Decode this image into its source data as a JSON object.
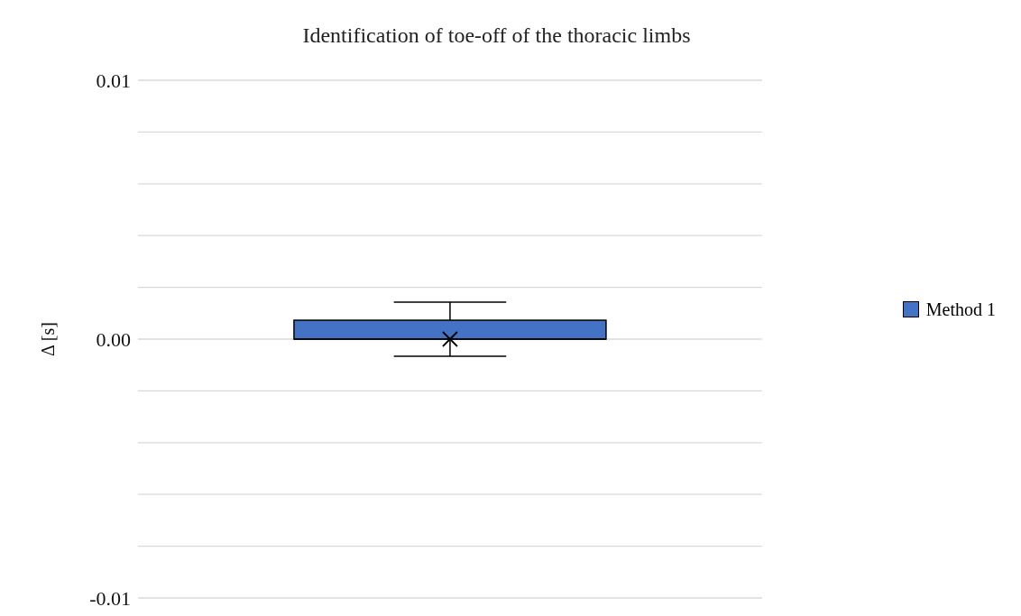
{
  "chart_data": {
    "type": "box",
    "title": "Identification of toe-off of the thoracic limbs",
    "ylabel": "Δ [s]",
    "categories": [
      null
    ],
    "series": [
      {
        "name": "Method 1",
        "color": "#4472c4",
        "boxes": [
          {
            "low": -0.00066,
            "q1": 0,
            "median": 0,
            "q3": 0.00073,
            "high": 0.00143,
            "mean": 0
          }
        ]
      }
    ],
    "ylim": [
      -0.01,
      0.01
    ],
    "yticks": [
      -0.01,
      {
        "value": -0.008,
        "label": null
      },
      {
        "value": -0.006,
        "label": null
      },
      {
        "value": -0.004,
        "label": null
      },
      {
        "value": -0.002,
        "label": null
      },
      {
        "value": 0,
        "label": "0.00"
      },
      {
        "value": 0.002,
        "label": null
      },
      {
        "value": 0.004,
        "label": null
      },
      {
        "value": 0.006,
        "label": null
      },
      {
        "value": 0.008,
        "label": null
      },
      0.01
    ],
    "grid": "y",
    "legend": "right"
  }
}
